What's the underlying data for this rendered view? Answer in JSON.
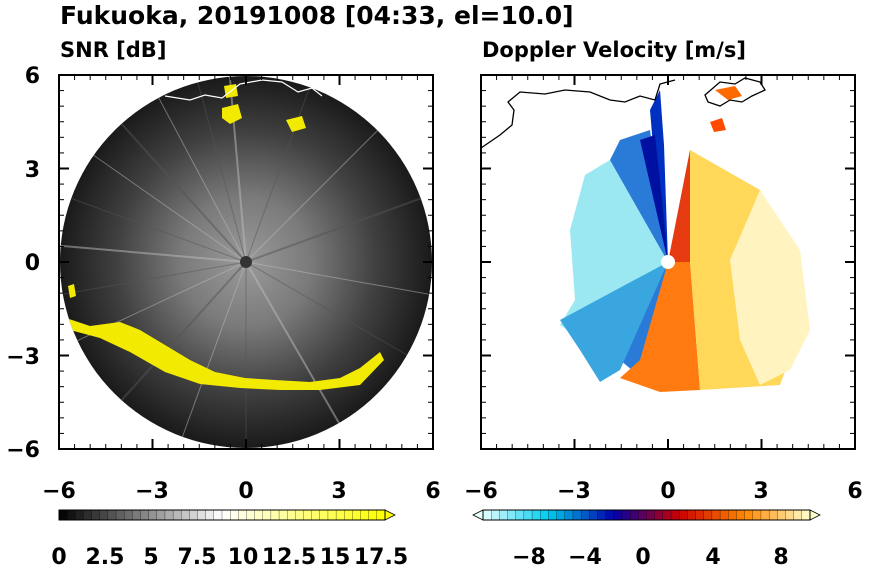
{
  "figure": {
    "title": "Fukuoka, 20191008 [04:33, el=10.0]"
  },
  "chart_data": [
    {
      "type": "heatmap",
      "subtitle": "SNR [dB]",
      "xlabel": "",
      "ylabel": "",
      "xlim": [
        -6,
        6
      ],
      "ylim": [
        -6,
        6
      ],
      "xticks": [
        "−6",
        "−3",
        "0",
        "3",
        "6"
      ],
      "yticks": [
        "6",
        "3",
        "0",
        "−3",
        "−6"
      ],
      "range_circle_radius": 6,
      "colorbar": {
        "min": 0,
        "max": 20,
        "levels": 40,
        "extend": "max",
        "ticks": [
          "0",
          "2.5",
          "5",
          "7.5",
          "10",
          "12.5",
          "15",
          "17.5"
        ],
        "colors": [
          "#000000",
          "#ffffff",
          "#ffff00"
        ]
      },
      "grid": false
    },
    {
      "type": "heatmap",
      "subtitle": "Doppler Velocity [m/s]",
      "xlabel": "",
      "ylabel": "",
      "xlim": [
        -6,
        6
      ],
      "ylim": [
        -6,
        6
      ],
      "xticks": [
        "−6",
        "−3",
        "0",
        "3",
        "6"
      ],
      "colorbar": {
        "min": -10,
        "max": 10,
        "levels": 40,
        "extend": "both",
        "ticks": [
          "−8",
          "−4",
          "0",
          "4",
          "8"
        ],
        "colors": [
          "#e6ffff",
          "#00ccee",
          "#0000aa",
          "#cc0000",
          "#ff8800",
          "#ffffcc"
        ]
      },
      "grid": false
    }
  ]
}
